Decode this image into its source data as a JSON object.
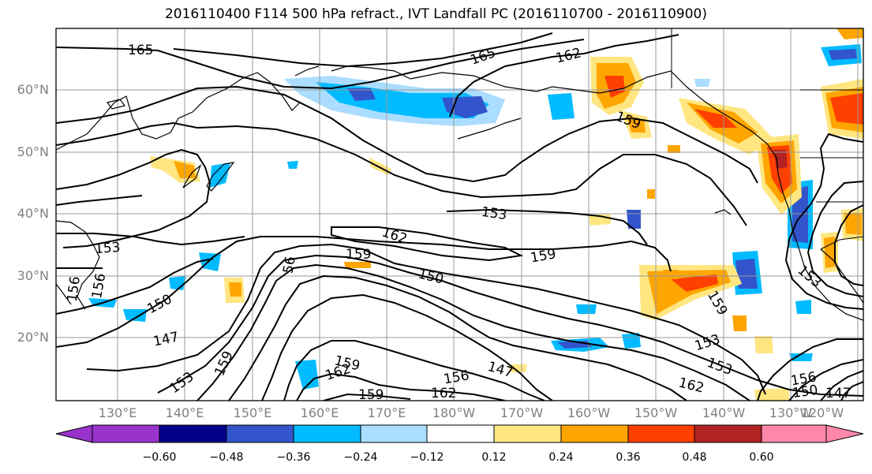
{
  "title": "2016110400 F114 500 hPa refract., IVT Landfall PC (2016110700 - 2016110900)",
  "lat_labels": [
    "60°N",
    "50°N",
    "40°N",
    "30°N",
    "20°N"
  ],
  "lon_labels": [
    "130°E",
    "140°E",
    "150°E",
    "160°E",
    "170°E",
    "180°W",
    "170°W",
    "160°W",
    "150°W",
    "140°W",
    "130°W",
    "120°W"
  ],
  "contour_labels": [
    "165",
    "165",
    "162",
    "159",
    "153",
    "162",
    "159",
    "159",
    "156",
    "150",
    "150",
    "147",
    "159",
    "153",
    "162",
    "159",
    "156",
    "162",
    "147",
    "159",
    "153",
    "153",
    "162",
    "156",
    "150",
    "147",
    "153",
    "153",
    "56",
    "156",
    "159"
  ],
  "colorbar": {
    "tick_labels": [
      "−0.60",
      "−0.48",
      "−0.36",
      "−0.24",
      "−0.12",
      "0.12",
      "0.24",
      "0.36",
      "0.48",
      "0.60"
    ],
    "colors": [
      "#9933cc",
      "#000088",
      "#3355cc",
      "#00bbff",
      "#aaddff",
      "#ffffff",
      "#ffe680",
      "#ffa500",
      "#ff4000",
      "#b22222",
      "#ff88aa"
    ]
  }
}
